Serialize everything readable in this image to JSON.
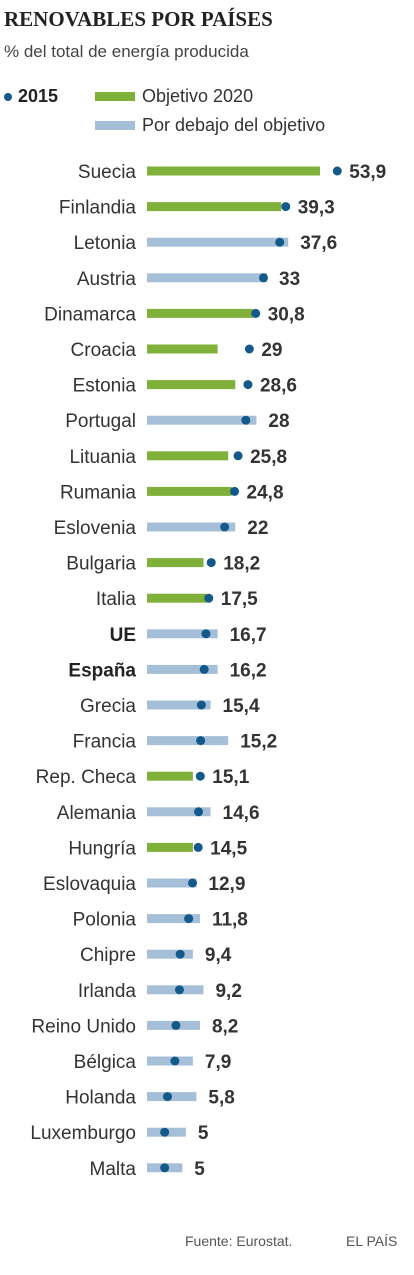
{
  "title": "RENOVABLES POR PAÍSES",
  "subtitle": "% del total de energía producida",
  "legend": {
    "year_label": "2015",
    "target_label": "Objetivo 2020",
    "below_label": "Por debajo del objetivo"
  },
  "colors": {
    "target_met": "#7fb03a",
    "below_target": "#a5bfd9",
    "dot": "#135a8a"
  },
  "source": "Fuente: Eurostat.",
  "brand": "EL PAÍS",
  "chart_data": {
    "type": "bar",
    "categories": [
      "Suecia",
      "Finlandia",
      "Letonia",
      "Austria",
      "Dinamarca",
      "Croacia",
      "Estonia",
      "Portugal",
      "Lituania",
      "Rumania",
      "Eslovenia",
      "Bulgaria",
      "Italia",
      "UE",
      "España",
      "Grecia",
      "Francia",
      "Rep. Checa",
      "Alemania",
      "Hungría",
      "Eslovaquia",
      "Polonia",
      "Chipre",
      "Irlanda",
      "Reino Unido",
      "Bélgica",
      "Holanda",
      "Luxemburgo",
      "Malta"
    ],
    "value_labels": [
      "53,9",
      "39,3",
      "37,6",
      "33",
      "30,8",
      "29",
      "28,6",
      "28",
      "25,8",
      "24,8",
      "22",
      "18,2",
      "17,5",
      "16,7",
      "16,2",
      "15,4",
      "15,2",
      "15,1",
      "14,6",
      "14,5",
      "12,9",
      "11,8",
      "9,4",
      "9,2",
      "8,2",
      "7,9",
      "5,8",
      "5",
      "5"
    ],
    "highlight": [
      "UE",
      "España"
    ],
    "series": [
      {
        "name": "2015",
        "values": [
          53.9,
          39.3,
          37.6,
          33,
          30.8,
          29,
          28.6,
          28,
          25.8,
          24.8,
          22,
          18.2,
          17.5,
          16.7,
          16.2,
          15.4,
          15.2,
          15.1,
          14.6,
          14.5,
          12.9,
          11.8,
          9.4,
          9.2,
          8.2,
          7.9,
          5.8,
          5,
          5
        ]
      },
      {
        "name": "Objetivo 2020",
        "values": [
          49,
          38,
          40,
          34,
          30,
          20,
          25,
          31,
          23,
          24,
          25,
          16,
          17,
          20,
          20,
          18,
          23,
          13,
          18,
          13,
          14,
          15,
          13,
          16,
          15,
          13,
          14,
          11,
          10
        ]
      }
    ],
    "target_met": [
      true,
      true,
      false,
      false,
      true,
      true,
      true,
      false,
      true,
      true,
      false,
      true,
      true,
      false,
      false,
      false,
      false,
      true,
      false,
      true,
      false,
      false,
      false,
      false,
      false,
      false,
      false,
      false,
      false
    ],
    "xlim": [
      0,
      54
    ],
    "grid": false
  }
}
